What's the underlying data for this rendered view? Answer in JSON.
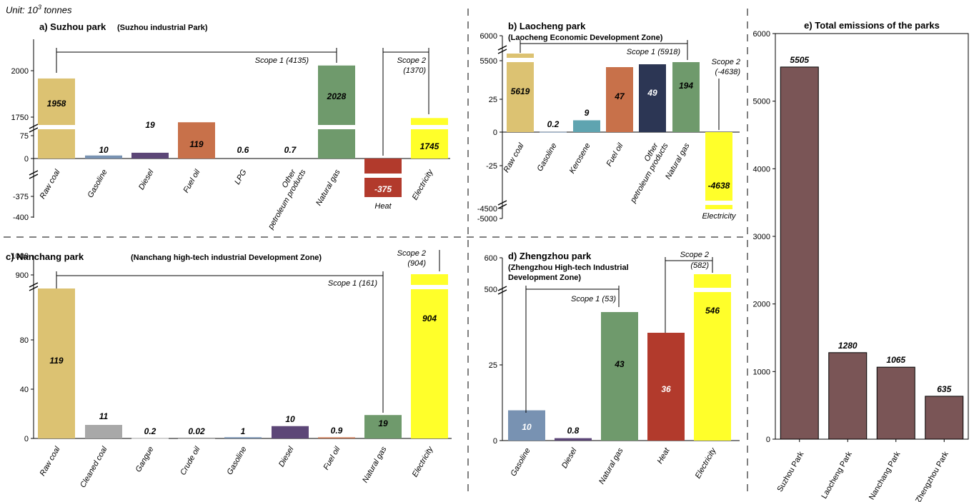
{
  "unit_label": "Unit: 10",
  "unit_sup": "3",
  "unit_suffix": " tonnes",
  "chart_data": [
    {
      "id": "a",
      "type": "bar",
      "title": "a) Suzhou park",
      "subtitle": "(Suzhou industrial Park)",
      "categories": [
        "Raw coal",
        "Gasoline",
        "Diesel",
        "Fuel oil",
        "LPG",
        "Other petroleum products",
        "Natural gas",
        "Heat",
        "Electricity"
      ],
      "values": [
        1958,
        10,
        19,
        119,
        0.6,
        0.7,
        2028,
        -375,
        1745
      ],
      "value_labels": [
        "1958",
        "10",
        "19",
        "119",
        "0.6",
        "0.7",
        "2028",
        "-375",
        "1745"
      ],
      "colors": [
        "#dcc272",
        "#7892b2",
        "#5c4677",
        "#c8714a",
        "#cccccc",
        "#cccccc",
        "#6f9a6c",
        "#b23a2c",
        "#ffff2a"
      ],
      "ticks": [
        "2000",
        "1750",
        "75",
        "0",
        "-375",
        "-400"
      ],
      "scope1_label": "Scope 1 (4135)",
      "scope2_label": [
        "Scope 2",
        "(1370)"
      ],
      "heat_label": "Heat"
    },
    {
      "id": "b",
      "type": "bar",
      "title": "b) Laocheng park",
      "subtitle": "(Laocheng Economic Development Zone)",
      "categories": [
        "Raw coal",
        "Gasoline",
        "Kerosene",
        "Fuel oil",
        "Other petroleum products",
        "Natural gas",
        "Electricity"
      ],
      "values": [
        5619,
        0.2,
        9,
        47,
        49,
        194,
        -4638
      ],
      "value_labels": [
        "5619",
        "0.2",
        "9",
        "47",
        "49",
        "194",
        "-4638"
      ],
      "colors": [
        "#dcc272",
        "#7892b2",
        "#5fa4b0",
        "#c8714a",
        "#2c3654",
        "#6f9a6c",
        "#ffff2a"
      ],
      "ticks": [
        "6000",
        "5500",
        "25",
        "0",
        "-25",
        "-4500",
        "-5000"
      ],
      "scope1_label": "Scope 1 (5918)",
      "scope2_label": [
        "Scope 2",
        "(-4638)"
      ]
    },
    {
      "id": "c",
      "type": "bar",
      "title": "c) Nanchang park",
      "subtitle": "(Nanchang high-tech industrial Development Zone)",
      "categories": [
        "Raw coal",
        "Cleaned coal",
        "Gangue",
        "Crude oil",
        "Gasoline",
        "Diesel",
        "Fuel oil",
        "Natural gas",
        "Electricity"
      ],
      "values": [
        119,
        11,
        0.2,
        0.02,
        1,
        10,
        0.9,
        19,
        904
      ],
      "value_labels": [
        "119",
        "11",
        "0.2",
        "0.02",
        "1",
        "10",
        "0.9",
        "19",
        "904"
      ],
      "colors": [
        "#dcc272",
        "#a8a8a8",
        "#cccccc",
        "#cccccc",
        "#7892b2",
        "#5c4677",
        "#c8714a",
        "#6f9a6c",
        "#ffff2a"
      ],
      "ticks": [
        "1000",
        "900",
        "80",
        "40",
        "0"
      ],
      "scope1_label": "Scope 1 (161)",
      "scope2_label": [
        "Scope 2",
        "(904)"
      ]
    },
    {
      "id": "d",
      "type": "bar",
      "title": "d) Zhengzhou park",
      "subtitle": [
        "(Zhengzhou High-tech Industrial",
        "Development Zone)"
      ],
      "categories": [
        "Gasoline",
        "Diesel",
        "Natural gas",
        "Heat",
        "Electricity"
      ],
      "values": [
        10,
        0.8,
        43,
        36,
        546
      ],
      "value_labels": [
        "10",
        "0.8",
        "43",
        "36",
        "546"
      ],
      "colors": [
        "#7892b2",
        "#5c4677",
        "#6f9a6c",
        "#b23a2c",
        "#ffff2a"
      ],
      "ticks": [
        "600",
        "500",
        "25",
        "0"
      ],
      "scope1_label": "Scope 1 (53)",
      "scope2_label": [
        "Scope 2",
        "(582)"
      ]
    },
    {
      "id": "e",
      "type": "bar",
      "title": "e) Total emissions of the parks",
      "categories": [
        "Suzhou Park",
        "Laocheng Park",
        "Nanchang Park",
        "Zhengzhou Park"
      ],
      "values": [
        5505,
        1280,
        1065,
        635
      ],
      "value_labels": [
        "5505",
        "1280",
        "1065",
        "635"
      ],
      "colors": [
        "#7a5556"
      ],
      "ylim": [
        0,
        6000
      ],
      "ticks": [
        "0",
        "1000",
        "2000",
        "3000",
        "4000",
        "5000",
        "6000"
      ]
    }
  ]
}
